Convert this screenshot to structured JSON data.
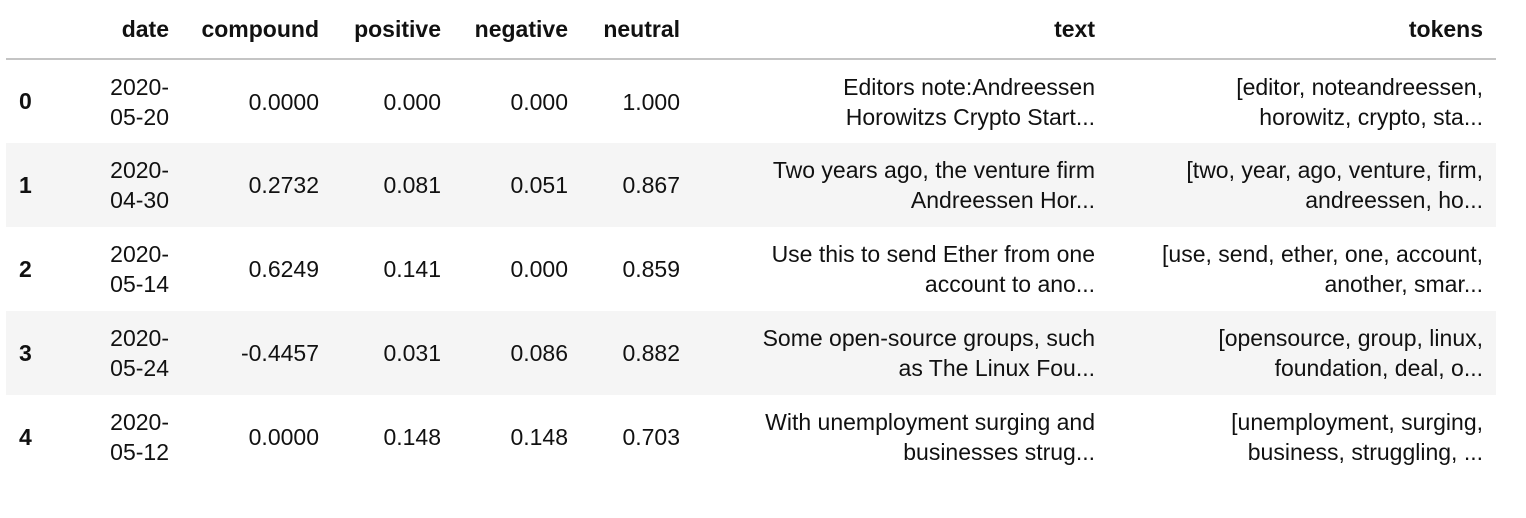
{
  "table": {
    "columns": [
      "",
      "date",
      "compound",
      "positive",
      "negative",
      "neutral",
      "text",
      "tokens"
    ],
    "rows": [
      {
        "index": "0",
        "date_line1": "2020-",
        "date_line2": "05-20",
        "compound": "0.0000",
        "positive": "0.000",
        "negative": "0.000",
        "neutral": "1.000",
        "text_line1": "Editors note:Andreessen",
        "text_line2": "Horowitzs Crypto Start...",
        "tokens_line1": "[editor, noteandreessen,",
        "tokens_line2": "horowitz, crypto, sta..."
      },
      {
        "index": "1",
        "date_line1": "2020-",
        "date_line2": "04-30",
        "compound": "0.2732",
        "positive": "0.081",
        "negative": "0.051",
        "neutral": "0.867",
        "text_line1": "Two years ago, the venture firm",
        "text_line2": "Andreessen Hor...",
        "tokens_line1": "[two, year, ago, venture, firm,",
        "tokens_line2": "andreessen, ho..."
      },
      {
        "index": "2",
        "date_line1": "2020-",
        "date_line2": "05-14",
        "compound": "0.6249",
        "positive": "0.141",
        "negative": "0.000",
        "neutral": "0.859",
        "text_line1": "Use this to send Ether from one",
        "text_line2": "account to ano...",
        "tokens_line1": "[use, send, ether, one, account,",
        "tokens_line2": "another, smar..."
      },
      {
        "index": "3",
        "date_line1": "2020-",
        "date_line2": "05-24",
        "compound": "-0.4457",
        "positive": "0.031",
        "negative": "0.086",
        "neutral": "0.882",
        "text_line1": "Some open-source groups, such",
        "text_line2": "as The Linux Fou...",
        "tokens_line1": "[opensource, group, linux,",
        "tokens_line2": "foundation, deal, o..."
      },
      {
        "index": "4",
        "date_line1": "2020-",
        "date_line2": "05-12",
        "compound": "0.0000",
        "positive": "0.148",
        "negative": "0.148",
        "neutral": "0.703",
        "text_line1": "With unemployment surging and",
        "text_line2": "businesses strug...",
        "tokens_line1": "[unemployment, surging,",
        "tokens_line2": "business, struggling, ..."
      }
    ]
  }
}
